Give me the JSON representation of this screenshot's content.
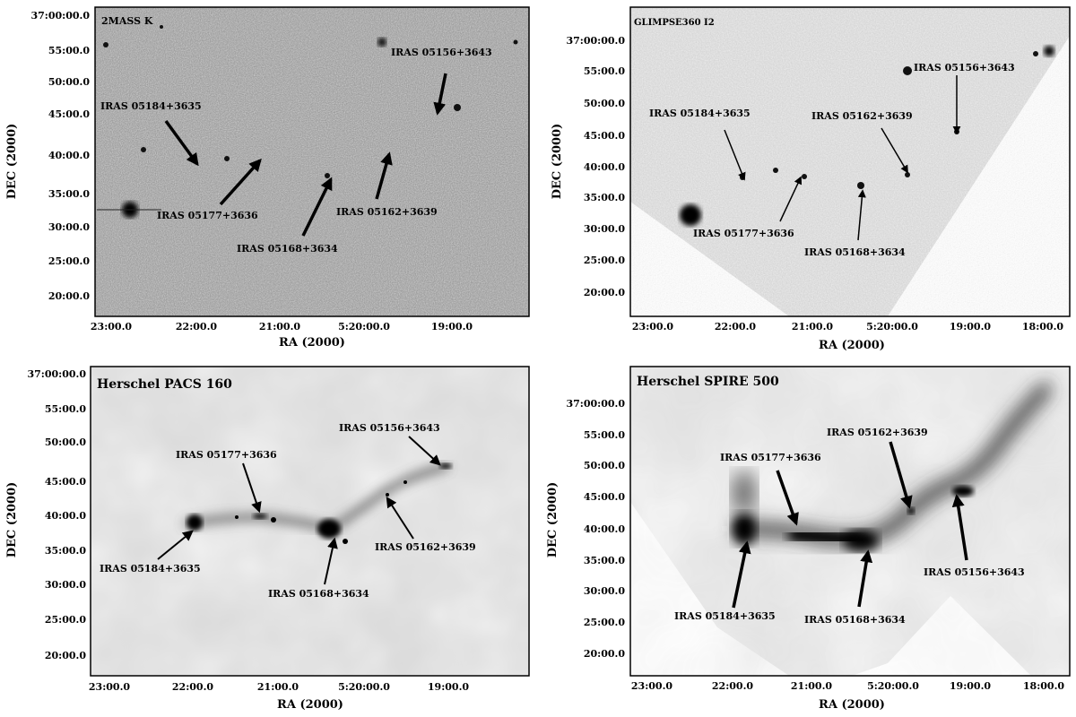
{
  "panels": [
    {
      "title": "2MASS K",
      "xlabel": "RA (2000)",
      "ylabel": "DEC (2000)",
      "xticks": [
        "23:00.0",
        "22:00.0",
        "21:00.0",
        "5:20:00.0",
        "19:00.0"
      ],
      "yticks": [
        "37:00:00.0",
        "55:00.0",
        "50:00.0",
        "45:00.0",
        "40:00.0",
        "35:00.0",
        "30:00.0",
        "25:00.0",
        "20:00.0"
      ],
      "sources": [
        "IRAS 05184+3635",
        "IRAS 05177+3636",
        "IRAS 05168+3634",
        "IRAS 05162+3639",
        "IRAS 05156+3643"
      ]
    },
    {
      "title": "GLIMPSE360 I2",
      "xlabel": "RA (2000)",
      "ylabel": "DEC (2000)",
      "xticks": [
        "23:00.0",
        "22:00.0",
        "21:00.0",
        "5:20:00.0",
        "19:00.0",
        "18:00.0"
      ],
      "yticks": [
        "37:00:00.0",
        "55:00.0",
        "50:00.0",
        "45:00.0",
        "40:00.0",
        "35:00.0",
        "30:00.0",
        "25:00.0",
        "20:00.0"
      ],
      "sources": [
        "IRAS 05184+3635",
        "IRAS 05177+3636",
        "IRAS 05168+3634",
        "IRAS 05162+3639",
        "IRAS 05156+3643"
      ]
    },
    {
      "title": "Herschel PACS 160",
      "xlabel": "RA (2000)",
      "ylabel": "DEC (2000)",
      "xticks": [
        "23:00.0",
        "22:00.0",
        "21:00.0",
        "5:20:00.0",
        "19:00.0"
      ],
      "yticks": [
        "37:00:00.0",
        "55:00.0",
        "50:00.0",
        "45:00.0",
        "40:00.0",
        "35:00.0",
        "30:00.0",
        "25:00.0",
        "20:00.0"
      ],
      "sources": [
        "IRAS 05184+3635",
        "IRAS 05177+3636",
        "IRAS 05168+3634",
        "IRAS 05162+3639",
        "IRAS 05156+3643"
      ]
    },
    {
      "title": "Herschel SPIRE 500",
      "xlabel": "RA (2000)",
      "ylabel": "DEC (2000)",
      "xticks": [
        "23:00.0",
        "22:00.0",
        "21:00.0",
        "5:20:00.0",
        "19:00.0",
        "18:00.0"
      ],
      "yticks": [
        "37:00:00.0",
        "55:00.0",
        "50:00.0",
        "45:00.0",
        "40:00.0",
        "35:00.0",
        "30:00.0",
        "25:00.0",
        "20:00.0"
      ],
      "sources": [
        "IRAS 05184+3635",
        "IRAS 05177+3636",
        "IRAS 05168+3634",
        "IRAS 05162+3639",
        "IRAS 05156+3643"
      ]
    }
  ]
}
